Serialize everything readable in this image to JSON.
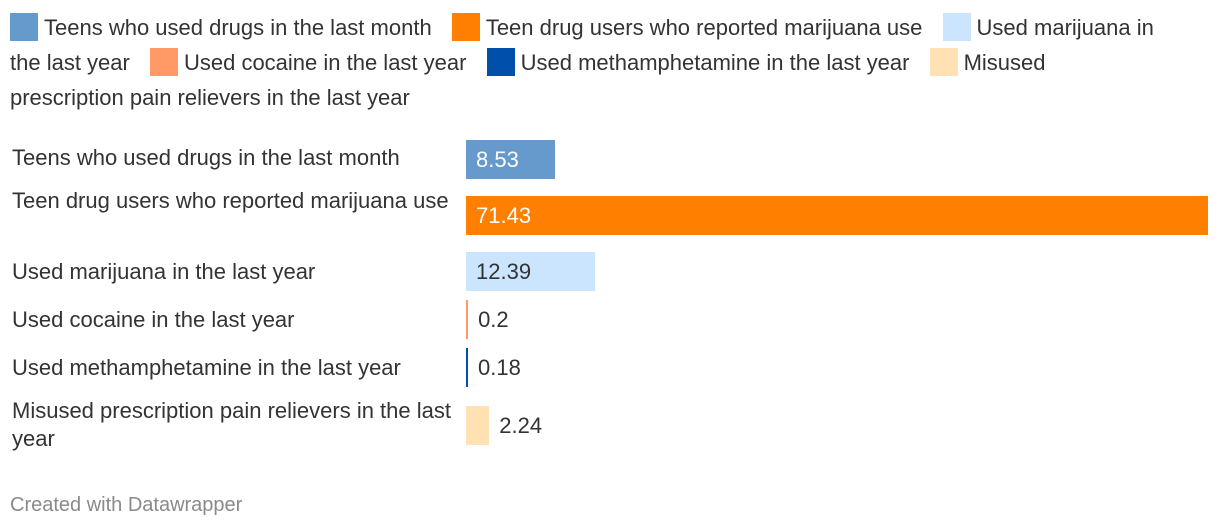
{
  "chart_data": {
    "type": "bar",
    "orientation": "horizontal",
    "categories": [
      "Teens who used drugs in the last month",
      "Teen drug users who reported marijuana use",
      "Used marijuana in the last year",
      "Used cocaine in the last year",
      "Used methamphetamine in the last year",
      "Misused prescription pain relievers in the last year"
    ],
    "values": [
      8.53,
      71.43,
      12.39,
      0.2,
      0.18,
      2.24
    ],
    "value_labels": [
      "8.53",
      "71.43",
      "12.39",
      "0.2",
      "0.18",
      "2.24"
    ],
    "colors": [
      "#6699cc",
      "#ff7f00",
      "#cce5ff",
      "#ff9966",
      "#004fa8",
      "#ffe1b3"
    ],
    "value_label_colors": [
      "#ffffff",
      "#ffffff",
      "#333333",
      "#333333",
      "#333333",
      "#333333"
    ],
    "xlim": [
      0,
      71.43
    ],
    "legend": {
      "placement": "top",
      "entries": [
        "Teens who used drugs in the last month",
        "Teen drug users who reported marijuana use",
        "Used marijuana in the last year",
        "Used cocaine in the last year",
        "Used methamphetamine in the last year",
        "Misused prescription pain relievers in the last year"
      ]
    },
    "title": "",
    "xlabel": "",
    "ylabel": ""
  },
  "footer": {
    "credit": "Created with Datawrapper"
  }
}
